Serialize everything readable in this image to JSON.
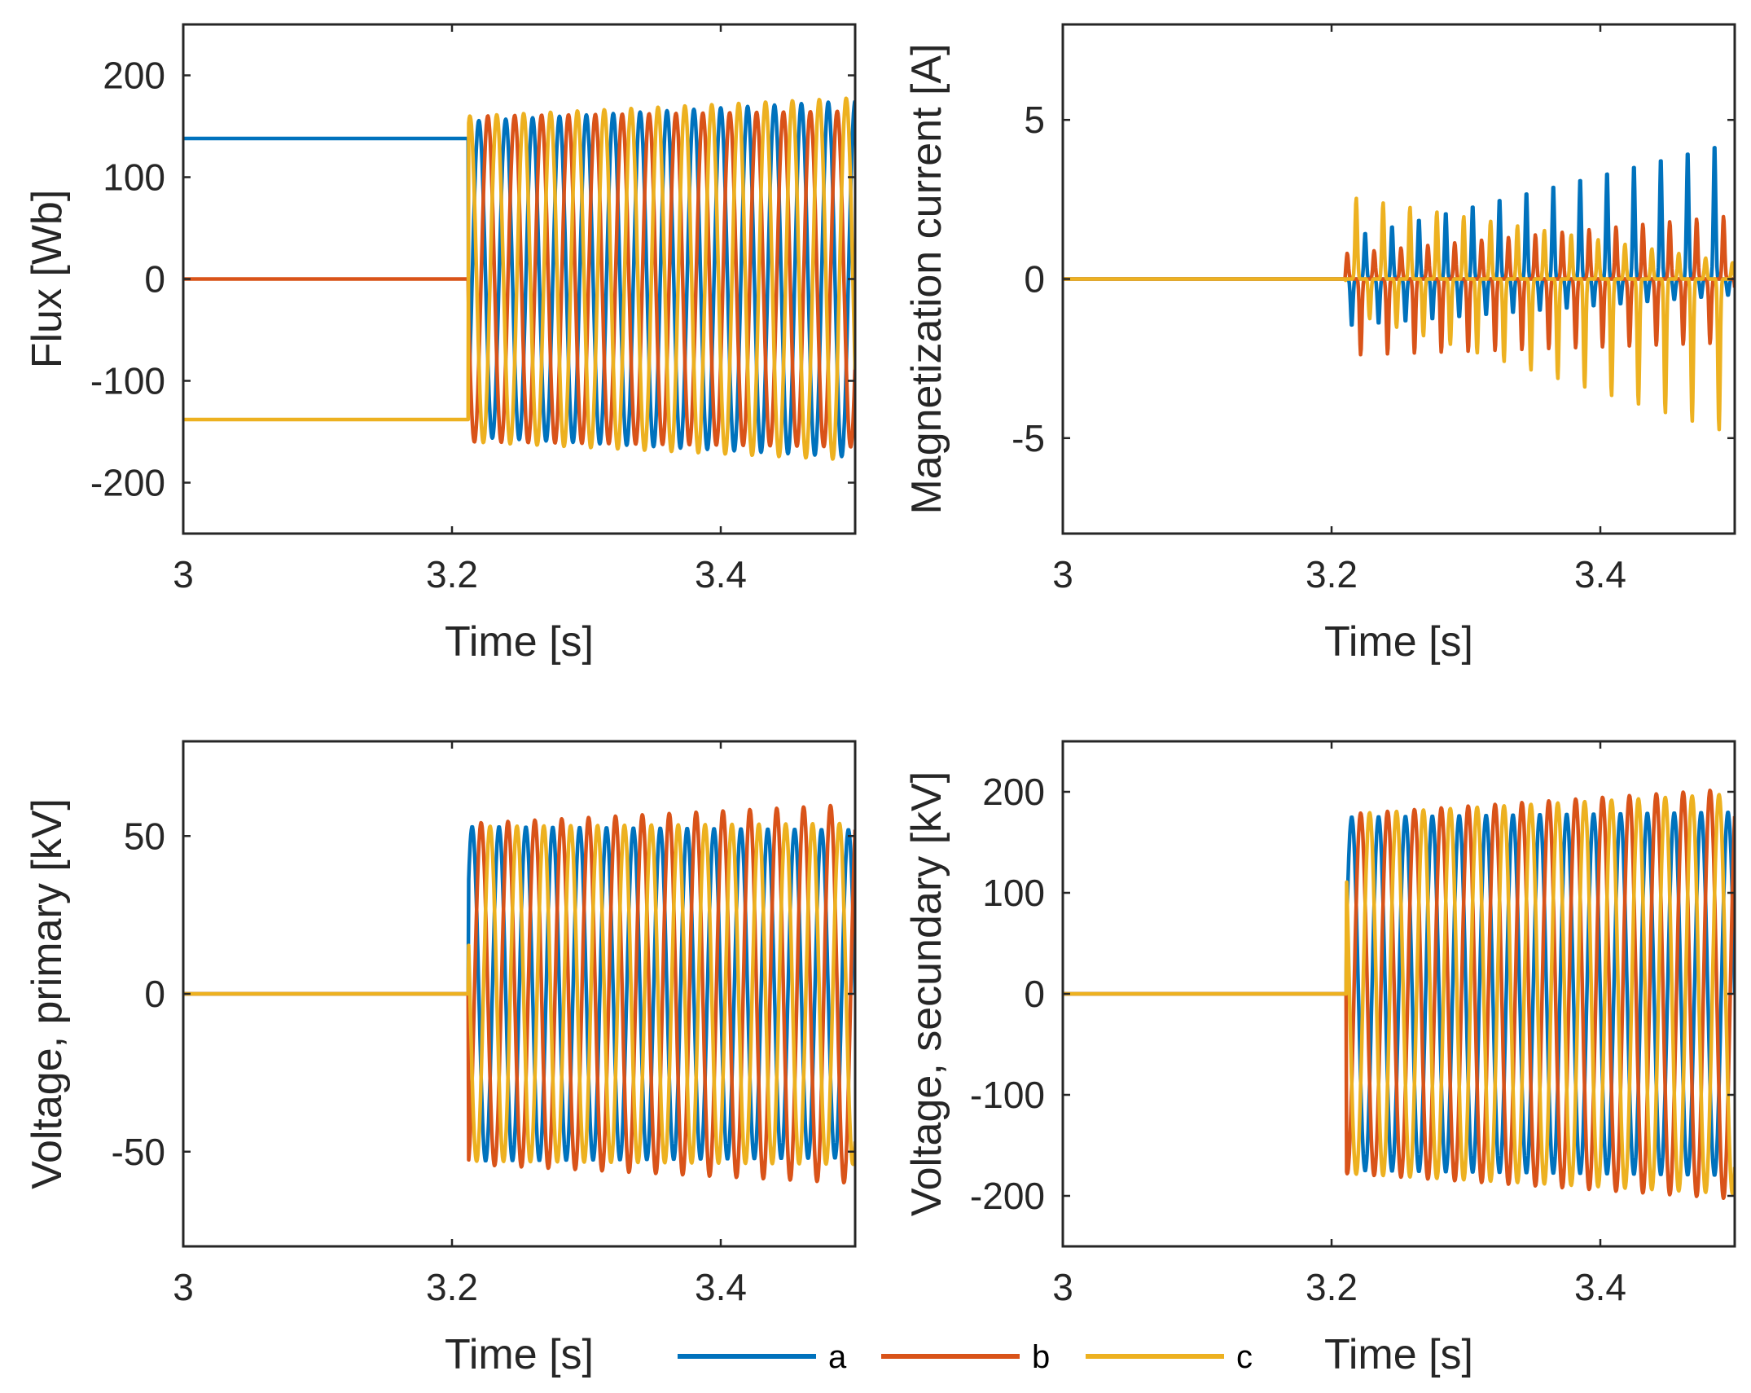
{
  "legend": [
    {
      "label": "a",
      "color": "#0072BD"
    },
    {
      "label": "b",
      "color": "#D95319"
    },
    {
      "label": "c",
      "color": "#EDB120"
    }
  ],
  "chart_data": [
    {
      "type": "line",
      "id": "flux",
      "ylabel": "Flux [Wb]",
      "xlabel": "Time [s]",
      "xlim": [
        3,
        3.5
      ],
      "ylim": [
        -250,
        250
      ],
      "xticks": [
        3,
        3.2,
        3.4
      ],
      "yticks": [
        -200,
        -100,
        0,
        100,
        200
      ],
      "series": [
        {
          "name": "a",
          "before_value": 138,
          "switch_time": 3.212,
          "amplitude_start": 155,
          "amplitude_end": 175,
          "frequency_hz": 50,
          "phase_deg": 90
        },
        {
          "name": "b",
          "before_value": 0,
          "switch_time": 3.212,
          "amplitude_start": 160,
          "amplitude_end": 165,
          "frequency_hz": 50,
          "phase_deg": -30
        },
        {
          "name": "c",
          "before_value": -138,
          "switch_time": 3.212,
          "amplitude_start": 160,
          "amplitude_end": 178,
          "frequency_hz": 50,
          "phase_deg": -150
        }
      ]
    },
    {
      "type": "line",
      "id": "magnetization",
      "ylabel": "Magnetization current [A]",
      "xlabel": "Time [s]",
      "xlim": [
        3,
        3.5
      ],
      "ylim": [
        -8,
        8
      ],
      "xticks": [
        3,
        3.2,
        3.4
      ],
      "yticks": [
        -5,
        0,
        5
      ],
      "series": [
        {
          "name": "a",
          "before_value": 0,
          "switch_time": 3.21,
          "pos_peak_start": 1.3,
          "pos_peak_end": 4.4,
          "neg_peak_start": 1.5,
          "neg_peak_end": 0.5,
          "frequency_hz": 50,
          "phase_deg": 0
        },
        {
          "name": "b",
          "before_value": 0,
          "switch_time": 3.21,
          "pos_peak_start": 0.8,
          "pos_peak_end": 2.0,
          "neg_peak_start": 2.4,
          "neg_peak_end": 2.0,
          "frequency_hz": 50,
          "phase_deg": -120
        },
        {
          "name": "c",
          "before_value": 0,
          "switch_time": 3.21,
          "pos_peak_start": 2.6,
          "pos_peak_end": 0.5,
          "neg_peak_start": 1.0,
          "neg_peak_end": 4.9,
          "frequency_hz": 50,
          "phase_deg": 120
        }
      ]
    },
    {
      "type": "line",
      "id": "vprimary",
      "ylabel": "Voltage, primary [kV]",
      "xlabel": "Time [s]",
      "xlim": [
        3,
        3.5
      ],
      "ylim": [
        -80,
        80
      ],
      "xticks": [
        3,
        3.2,
        3.4
      ],
      "yticks": [
        -50,
        0,
        50
      ],
      "series": [
        {
          "name": "a",
          "before_value": 0,
          "switch_time": 3.212,
          "amplitude_start": 53,
          "amplitude_end": 52,
          "frequency_hz": 50,
          "phase_deg": 180
        },
        {
          "name": "b",
          "before_value": 0,
          "switch_time": 3.212,
          "amplitude_start": 54,
          "amplitude_end": 60,
          "frequency_hz": 50,
          "phase_deg": 60
        },
        {
          "name": "c",
          "before_value": 0,
          "switch_time": 3.212,
          "amplitude_start": 53,
          "amplitude_end": 54,
          "frequency_hz": 50,
          "phase_deg": -60
        }
      ]
    },
    {
      "type": "line",
      "id": "vsecondary",
      "ylabel": "Voltage, secundary [kV]",
      "xlabel": "Time [s]",
      "xlim": [
        3,
        3.5
      ],
      "ylim": [
        -250,
        250
      ],
      "xticks": [
        3,
        3.2,
        3.4
      ],
      "yticks": [
        -200,
        -100,
        0,
        100,
        200
      ],
      "series": [
        {
          "name": "a",
          "before_value": 0,
          "switch_time": 3.211,
          "amplitude_start": 175,
          "amplitude_end": 180,
          "frequency_hz": 50,
          "phase_deg": 180
        },
        {
          "name": "b",
          "before_value": 0,
          "switch_time": 3.211,
          "amplitude_start": 178,
          "amplitude_end": 203,
          "frequency_hz": 50,
          "phase_deg": 60
        },
        {
          "name": "c",
          "before_value": 0,
          "switch_time": 3.211,
          "amplitude_start": 178,
          "amplitude_end": 198,
          "frequency_hz": 50,
          "phase_deg": -60
        }
      ]
    }
  ]
}
